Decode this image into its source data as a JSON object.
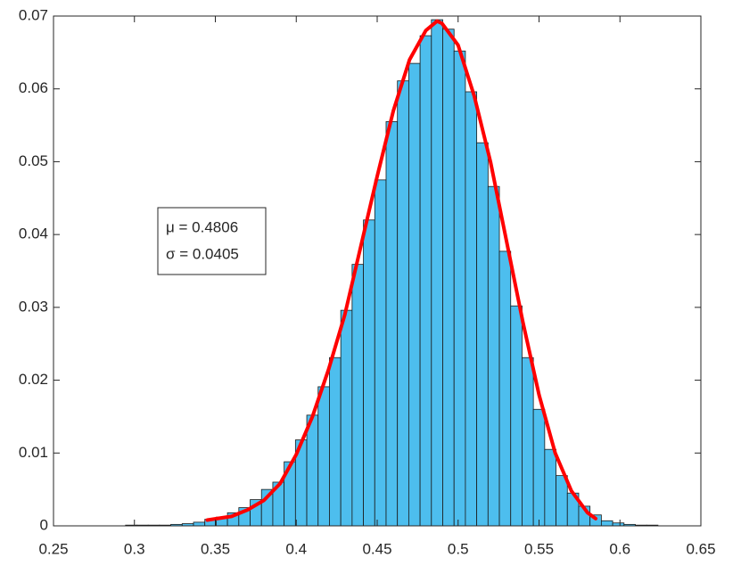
{
  "chart_data": {
    "type": "histogram",
    "bins": [
      0.2945,
      0.3015,
      0.3085,
      0.3155,
      0.3225,
      0.3295,
      0.3365,
      0.3435,
      0.3505,
      0.3575,
      0.3645,
      0.3715,
      0.3785,
      0.3855,
      0.3925,
      0.3995,
      0.4065,
      0.4135,
      0.4205,
      0.4275,
      0.4345,
      0.4415,
      0.4485,
      0.4555,
      0.4625,
      0.4695,
      0.4765,
      0.4835,
      0.4905,
      0.4975,
      0.5045,
      0.5115,
      0.5185,
      0.5255,
      0.5325,
      0.5395,
      0.5465,
      0.5535,
      0.5605,
      0.5675,
      0.5745,
      0.5815,
      0.5885,
      0.5955,
      0.6025,
      0.6095,
      0.6165,
      0.6235
    ],
    "values": [
      0.0001,
      0.0001,
      0.0001,
      0.0001,
      0.0002,
      0.0003,
      0.0005,
      0.0009,
      0.0012,
      0.0018,
      0.0025,
      0.0036,
      0.005,
      0.006,
      0.0088,
      0.0118,
      0.0152,
      0.0191,
      0.0231,
      0.0296,
      0.0359,
      0.042,
      0.0475,
      0.0555,
      0.0611,
      0.0635,
      0.0673,
      0.0695,
      0.0682,
      0.0652,
      0.0596,
      0.0526,
      0.0466,
      0.0377,
      0.0302,
      0.0231,
      0.016,
      0.0105,
      0.0069,
      0.0045,
      0.0027,
      0.0015,
      0.0007,
      0.0004,
      0.0002,
      0.0001,
      0.0001
    ],
    "color": "#4dbeee",
    "edgecolor": "#1a1a1a",
    "fit": {
      "x": [
        0.345,
        0.36,
        0.37,
        0.38,
        0.39,
        0.4,
        0.41,
        0.42,
        0.43,
        0.44,
        0.45,
        0.46,
        0.47,
        0.48,
        0.487,
        0.49,
        0.5,
        0.51,
        0.52,
        0.53,
        0.54,
        0.55,
        0.56,
        0.57,
        0.58,
        0.585
      ],
      "values": [
        0.0008,
        0.0013,
        0.0022,
        0.0035,
        0.0058,
        0.0098,
        0.015,
        0.0215,
        0.029,
        0.0385,
        0.048,
        0.057,
        0.064,
        0.068,
        0.0693,
        0.069,
        0.066,
        0.059,
        0.05,
        0.039,
        0.028,
        0.018,
        0.01,
        0.0048,
        0.0018,
        0.001
      ],
      "color": "#ff0000"
    },
    "annotations": [
      "μ = 0.4806",
      "σ = 0.0405"
    ],
    "xlim": [
      0.25,
      0.65
    ],
    "xticks": [
      0.25,
      0.3,
      0.35,
      0.4,
      0.45,
      0.5,
      0.55,
      0.6,
      0.65
    ],
    "ylim": [
      0,
      0.07
    ],
    "yticks": [
      0,
      0.01,
      0.02,
      0.03,
      0.04,
      0.05,
      0.06,
      0.07
    ]
  }
}
